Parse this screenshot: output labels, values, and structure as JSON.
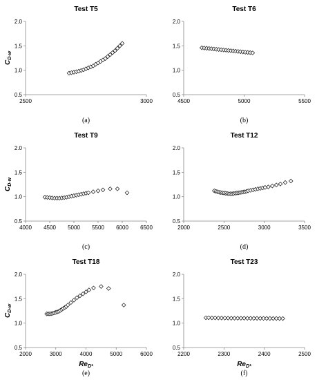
{
  "figure": {
    "y_label_main": "C",
    "y_label_sub": "D-w",
    "x_label_main": "Re",
    "x_label_sub": "D*"
  },
  "chart_data": [
    {
      "type": "scatter",
      "title": "Test T5",
      "subcaption": "(a)",
      "xlim": [
        2500,
        3000
      ],
      "ylim": [
        0.5,
        2.0
      ],
      "xticks": [
        "2500",
        "3000"
      ],
      "yticks": [
        "0.5",
        "1.0",
        "1.5",
        "2.0"
      ],
      "show_ylabel": true,
      "show_xlabel": false,
      "series": [
        {
          "x": [
            2680,
            2690,
            2700,
            2710,
            2720,
            2730,
            2740,
            2750,
            2760,
            2770,
            2780,
            2790,
            2800,
            2810,
            2820,
            2830,
            2840,
            2850,
            2860,
            2870,
            2880,
            2890,
            2900
          ],
          "y": [
            0.94,
            0.95,
            0.96,
            0.97,
            0.98,
            0.995,
            1.01,
            1.03,
            1.05,
            1.07,
            1.09,
            1.12,
            1.15,
            1.18,
            1.21,
            1.24,
            1.28,
            1.32,
            1.36,
            1.4,
            1.45,
            1.5,
            1.55
          ]
        }
      ]
    },
    {
      "type": "scatter",
      "title": "Test T6",
      "subcaption": "(b)",
      "xlim": [
        4500,
        5500
      ],
      "ylim": [
        0.5,
        2.0
      ],
      "xticks": [
        "4500",
        "5000",
        "5500"
      ],
      "yticks": [
        "0.5",
        "1.0",
        "1.5",
        "2.0"
      ],
      "show_ylabel": false,
      "show_xlabel": false,
      "series": [
        {
          "x": [
            4650,
            4670,
            4690,
            4710,
            4730,
            4750,
            4770,
            4790,
            4810,
            4830,
            4850,
            4870,
            4890,
            4910,
            4930,
            4950,
            4970,
            4990,
            5010,
            5030,
            5050,
            5070
          ],
          "y": [
            1.46,
            1.455,
            1.45,
            1.445,
            1.44,
            1.435,
            1.43,
            1.425,
            1.42,
            1.415,
            1.41,
            1.405,
            1.4,
            1.395,
            1.39,
            1.385,
            1.38,
            1.375,
            1.37,
            1.365,
            1.36,
            1.355
          ]
        }
      ]
    },
    {
      "type": "scatter",
      "title": "Test T9",
      "subcaption": "(c)",
      "xlim": [
        4000,
        6500
      ],
      "ylim": [
        0.5,
        2.0
      ],
      "xticks": [
        "4000",
        "4500",
        "5000",
        "5500",
        "6000",
        "6500"
      ],
      "yticks": [
        "0.5",
        "1.0",
        "1.5",
        "2.0"
      ],
      "show_ylabel": true,
      "show_xlabel": false,
      "series": [
        {
          "x": [
            4400,
            4450,
            4500,
            4550,
            4600,
            4650,
            4700,
            4750,
            4800,
            4850,
            4900,
            4950,
            5000,
            5050,
            5100,
            5150,
            5200,
            5250,
            5300,
            5400,
            5500,
            5600,
            5750,
            5900,
            6100
          ],
          "y": [
            0.99,
            0.985,
            0.98,
            0.975,
            0.97,
            0.97,
            0.97,
            0.975,
            0.98,
            0.99,
            1.0,
            1.01,
            1.02,
            1.03,
            1.04,
            1.05,
            1.06,
            1.07,
            1.08,
            1.1,
            1.12,
            1.14,
            1.16,
            1.16,
            1.08
          ]
        }
      ]
    },
    {
      "type": "scatter",
      "title": "Test T12",
      "subcaption": "(d)",
      "xlim": [
        2000,
        3500
      ],
      "ylim": [
        0.5,
        2.0
      ],
      "xticks": [
        "2000",
        "2500",
        "3000",
        "3500"
      ],
      "yticks": [
        "0.5",
        "1.0",
        "1.5",
        "2.0"
      ],
      "show_ylabel": false,
      "show_xlabel": false,
      "series": [
        {
          "x": [
            2380,
            2400,
            2420,
            2440,
            2460,
            2480,
            2500,
            2520,
            2540,
            2560,
            2580,
            2600,
            2620,
            2640,
            2660,
            2680,
            2700,
            2720,
            2740,
            2760,
            2780,
            2800,
            2830,
            2860,
            2890,
            2920,
            2950,
            2980,
            3010,
            3050,
            3100,
            3150,
            3200,
            3260,
            3330
          ],
          "y": [
            1.12,
            1.11,
            1.1,
            1.09,
            1.085,
            1.08,
            1.075,
            1.07,
            1.065,
            1.06,
            1.06,
            1.06,
            1.065,
            1.07,
            1.075,
            1.08,
            1.085,
            1.09,
            1.095,
            1.1,
            1.11,
            1.12,
            1.13,
            1.14,
            1.15,
            1.16,
            1.17,
            1.18,
            1.19,
            1.2,
            1.22,
            1.24,
            1.26,
            1.29,
            1.32
          ]
        }
      ]
    },
    {
      "type": "scatter",
      "title": "Test T18",
      "subcaption": "(e)",
      "xlim": [
        2000,
        6000
      ],
      "ylim": [
        0.5,
        2.0
      ],
      "xticks": [
        "2000",
        "3000",
        "4000",
        "5000",
        "6000"
      ],
      "yticks": [
        "0.5",
        "1.0",
        "1.5",
        "2.0"
      ],
      "show_ylabel": true,
      "show_xlabel": true,
      "series": [
        {
          "x": [
            2700,
            2750,
            2800,
            2850,
            2900,
            2950,
            3000,
            3050,
            3100,
            3150,
            3200,
            3250,
            3300,
            3350,
            3400,
            3500,
            3600,
            3700,
            3800,
            3900,
            4000,
            4100,
            4250,
            4500,
            4750,
            5250
          ],
          "y": [
            1.19,
            1.19,
            1.19,
            1.195,
            1.2,
            1.21,
            1.22,
            1.23,
            1.24,
            1.26,
            1.28,
            1.3,
            1.32,
            1.34,
            1.37,
            1.42,
            1.47,
            1.52,
            1.56,
            1.6,
            1.64,
            1.68,
            1.72,
            1.75,
            1.71,
            1.37
          ]
        }
      ]
    },
    {
      "type": "scatter",
      "title": "Test T23",
      "subcaption": "(f)",
      "xlim": [
        2200,
        2500
      ],
      "ylim": [
        0.5,
        2.0
      ],
      "xticks": [
        "2200",
        "2300",
        "2400",
        "2500"
      ],
      "yticks": [
        "0.5",
        "1.0",
        "1.5",
        "2.0"
      ],
      "show_ylabel": false,
      "show_xlabel": true,
      "series": [
        {
          "x": [
            2255,
            2262,
            2270,
            2278,
            2286,
            2294,
            2302,
            2310,
            2318,
            2326,
            2334,
            2342,
            2350,
            2358,
            2366,
            2374,
            2382,
            2390,
            2398,
            2406,
            2414,
            2422,
            2430,
            2438,
            2446
          ],
          "y": [
            1.11,
            1.11,
            1.108,
            1.106,
            1.105,
            1.104,
            1.103,
            1.102,
            1.101,
            1.1,
            1.1,
            1.1,
            1.1,
            1.099,
            1.099,
            1.098,
            1.098,
            1.097,
            1.097,
            1.096,
            1.096,
            1.095,
            1.095,
            1.094,
            1.094
          ]
        }
      ]
    }
  ]
}
